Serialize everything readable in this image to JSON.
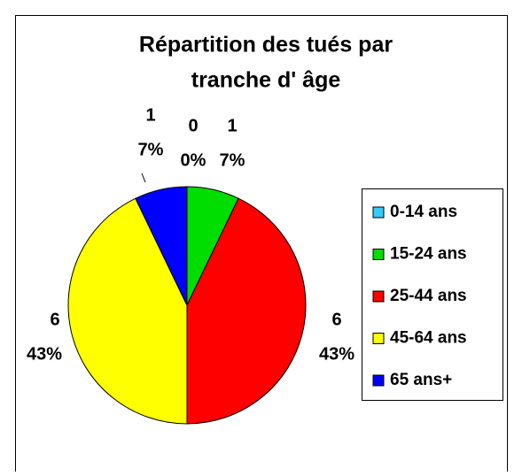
{
  "chart_data": {
    "type": "pie",
    "title": [
      "Répartition des tués par",
      "tranche d' âge"
    ],
    "categories": [
      "0-14 ans",
      "15-24 ans",
      "25-44 ans",
      "45-64 ans",
      "65 ans+"
    ],
    "values": [
      0,
      1,
      6,
      6,
      1
    ],
    "percent_labels": [
      "0%",
      "7%",
      "43%",
      "43%",
      "7%"
    ],
    "colors": [
      "#33ccff",
      "#00dd00",
      "#ff0000",
      "#ffff00",
      "#0000ff"
    ],
    "legend": "right"
  }
}
